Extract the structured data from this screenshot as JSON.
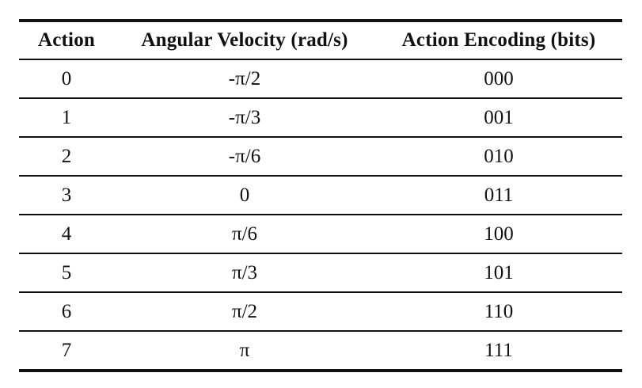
{
  "table": {
    "headers": [
      "Action",
      "Angular Velocity (rad/s)",
      "Action Encoding (bits)"
    ],
    "rows": [
      {
        "action": "0",
        "angular_velocity": "-π/2",
        "encoding": "000"
      },
      {
        "action": "1",
        "angular_velocity": "-π/3",
        "encoding": "001"
      },
      {
        "action": "2",
        "angular_velocity": "-π/6",
        "encoding": "010"
      },
      {
        "action": "3",
        "angular_velocity": "0",
        "encoding": "011"
      },
      {
        "action": "4",
        "angular_velocity": "π/6",
        "encoding": "100"
      },
      {
        "action": "5",
        "angular_velocity": "π/3",
        "encoding": "101"
      },
      {
        "action": "6",
        "angular_velocity": "π/2",
        "encoding": "110"
      },
      {
        "action": "7",
        "angular_velocity": "π",
        "encoding": "111"
      }
    ]
  }
}
